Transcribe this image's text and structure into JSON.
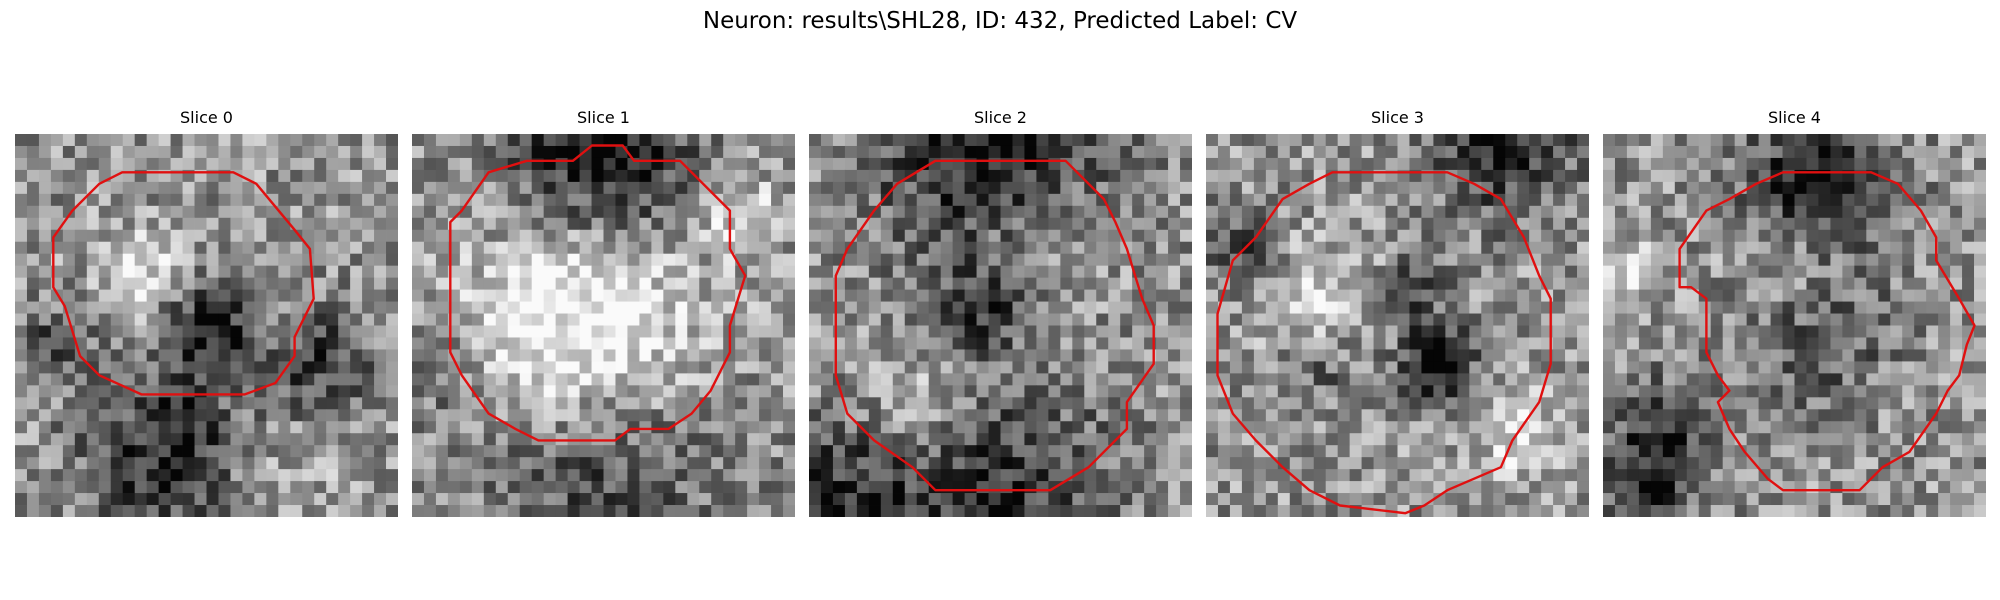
{
  "figure": {
    "title": "Neuron: results\\SHL28, ID: 432, Predicted Label: CV",
    "contour_color": "#e01010"
  },
  "panels": [
    {
      "title": "Slice 0",
      "dark_spots": [
        [
          0.5,
          0.5,
          0.12,
          0.45
        ],
        [
          0.43,
          0.85,
          0.22,
          0.55
        ],
        [
          0.1,
          0.55,
          0.1,
          0.3
        ],
        [
          0.8,
          0.6,
          0.14,
          0.35
        ]
      ],
      "bright_spots": [
        [
          0.33,
          0.37,
          0.12,
          0.3
        ],
        [
          0.6,
          0.9,
          0.2,
          0.25
        ]
      ],
      "contour": [
        [
          0.28,
          0.1
        ],
        [
          0.57,
          0.1
        ],
        [
          0.63,
          0.13
        ],
        [
          0.73,
          0.25
        ],
        [
          0.77,
          0.3
        ],
        [
          0.78,
          0.43
        ],
        [
          0.73,
          0.53
        ],
        [
          0.73,
          0.58
        ],
        [
          0.68,
          0.65
        ],
        [
          0.6,
          0.68
        ],
        [
          0.33,
          0.68
        ],
        [
          0.22,
          0.63
        ],
        [
          0.17,
          0.58
        ],
        [
          0.13,
          0.45
        ],
        [
          0.1,
          0.4
        ],
        [
          0.1,
          0.27
        ],
        [
          0.15,
          0.2
        ],
        [
          0.22,
          0.13
        ]
      ]
    },
    {
      "title": "Slice 1",
      "dark_spots": [
        [
          0.5,
          0.05,
          0.25,
          0.55
        ],
        [
          0.5,
          0.88,
          0.3,
          0.35
        ],
        [
          0.05,
          0.6,
          0.12,
          0.25
        ]
      ],
      "bright_spots": [
        [
          0.45,
          0.5,
          0.3,
          0.5
        ],
        [
          0.85,
          0.2,
          0.1,
          0.3
        ]
      ],
      "contour": [
        [
          0.3,
          0.07
        ],
        [
          0.42,
          0.07
        ],
        [
          0.47,
          0.03
        ],
        [
          0.55,
          0.03
        ],
        [
          0.58,
          0.07
        ],
        [
          0.7,
          0.07
        ],
        [
          0.8,
          0.17
        ],
        [
          0.83,
          0.2
        ],
        [
          0.83,
          0.3
        ],
        [
          0.87,
          0.37
        ],
        [
          0.83,
          0.5
        ],
        [
          0.83,
          0.57
        ],
        [
          0.78,
          0.67
        ],
        [
          0.73,
          0.73
        ],
        [
          0.67,
          0.77
        ],
        [
          0.57,
          0.77
        ],
        [
          0.53,
          0.8
        ],
        [
          0.33,
          0.8
        ],
        [
          0.27,
          0.77
        ],
        [
          0.2,
          0.73
        ],
        [
          0.13,
          0.63
        ],
        [
          0.1,
          0.57
        ],
        [
          0.1,
          0.23
        ],
        [
          0.13,
          0.2
        ],
        [
          0.2,
          0.1
        ]
      ]
    },
    {
      "title": "Slice 2",
      "dark_spots": [
        [
          0.5,
          0.03,
          0.3,
          0.6
        ],
        [
          0.45,
          0.45,
          0.12,
          0.35
        ],
        [
          0.08,
          0.95,
          0.2,
          0.35
        ],
        [
          0.5,
          0.95,
          0.3,
          0.4
        ]
      ],
      "bright_spots": [
        [
          0.6,
          0.25,
          0.2,
          0.25
        ],
        [
          0.3,
          0.7,
          0.15,
          0.2
        ]
      ],
      "contour": [
        [
          0.33,
          0.07
        ],
        [
          0.67,
          0.07
        ],
        [
          0.73,
          0.13
        ],
        [
          0.77,
          0.17
        ],
        [
          0.8,
          0.23
        ],
        [
          0.83,
          0.3
        ],
        [
          0.87,
          0.43
        ],
        [
          0.9,
          0.5
        ],
        [
          0.9,
          0.6
        ],
        [
          0.83,
          0.7
        ],
        [
          0.83,
          0.77
        ],
        [
          0.73,
          0.87
        ],
        [
          0.63,
          0.93
        ],
        [
          0.33,
          0.93
        ],
        [
          0.27,
          0.87
        ],
        [
          0.17,
          0.8
        ],
        [
          0.1,
          0.73
        ],
        [
          0.07,
          0.63
        ],
        [
          0.07,
          0.37
        ],
        [
          0.1,
          0.3
        ],
        [
          0.17,
          0.2
        ],
        [
          0.23,
          0.13
        ]
      ]
    },
    {
      "title": "Slice 3",
      "dark_spots": [
        [
          0.6,
          0.6,
          0.1,
          0.6
        ],
        [
          0.55,
          0.4,
          0.08,
          0.3
        ],
        [
          0.3,
          0.6,
          0.1,
          0.25
        ],
        [
          0.78,
          0.03,
          0.18,
          0.45
        ],
        [
          0.08,
          0.3,
          0.1,
          0.3
        ]
      ],
      "bright_spots": [
        [
          0.3,
          0.45,
          0.15,
          0.25
        ],
        [
          0.82,
          0.78,
          0.12,
          0.25
        ]
      ],
      "contour": [
        [
          0.33,
          0.1
        ],
        [
          0.63,
          0.1
        ],
        [
          0.7,
          0.13
        ],
        [
          0.77,
          0.17
        ],
        [
          0.83,
          0.27
        ],
        [
          0.87,
          0.37
        ],
        [
          0.9,
          0.43
        ],
        [
          0.9,
          0.6
        ],
        [
          0.87,
          0.7
        ],
        [
          0.8,
          0.8
        ],
        [
          0.77,
          0.87
        ],
        [
          0.63,
          0.93
        ],
        [
          0.57,
          0.97
        ],
        [
          0.52,
          0.99
        ],
        [
          0.35,
          0.97
        ],
        [
          0.27,
          0.93
        ],
        [
          0.2,
          0.87
        ],
        [
          0.13,
          0.8
        ],
        [
          0.07,
          0.73
        ],
        [
          0.03,
          0.63
        ],
        [
          0.03,
          0.47
        ],
        [
          0.07,
          0.33
        ],
        [
          0.13,
          0.27
        ],
        [
          0.2,
          0.17
        ],
        [
          0.27,
          0.13
        ]
      ]
    },
    {
      "title": "Slice 4",
      "dark_spots": [
        [
          0.57,
          0.12,
          0.18,
          0.55
        ],
        [
          0.55,
          0.5,
          0.2,
          0.3
        ],
        [
          0.15,
          0.8,
          0.15,
          0.35
        ],
        [
          0.1,
          0.95,
          0.12,
          0.3
        ]
      ],
      "bright_spots": [
        [
          0.05,
          0.35,
          0.08,
          0.3
        ],
        [
          0.5,
          0.35,
          0.15,
          0.25
        ]
      ],
      "contour": [
        [
          0.47,
          0.1
        ],
        [
          0.7,
          0.1
        ],
        [
          0.77,
          0.13
        ],
        [
          0.83,
          0.2
        ],
        [
          0.87,
          0.27
        ],
        [
          0.87,
          0.33
        ],
        [
          0.93,
          0.43
        ],
        [
          0.97,
          0.5
        ],
        [
          0.95,
          0.55
        ],
        [
          0.93,
          0.63
        ],
        [
          0.9,
          0.67
        ],
        [
          0.87,
          0.73
        ],
        [
          0.8,
          0.83
        ],
        [
          0.73,
          0.87
        ],
        [
          0.67,
          0.93
        ],
        [
          0.47,
          0.93
        ],
        [
          0.43,
          0.9
        ],
        [
          0.37,
          0.83
        ],
        [
          0.33,
          0.77
        ],
        [
          0.3,
          0.7
        ],
        [
          0.33,
          0.67
        ],
        [
          0.3,
          0.63
        ],
        [
          0.27,
          0.57
        ],
        [
          0.27,
          0.43
        ],
        [
          0.23,
          0.4
        ],
        [
          0.2,
          0.4
        ],
        [
          0.2,
          0.3
        ],
        [
          0.27,
          0.2
        ],
        [
          0.33,
          0.17
        ],
        [
          0.4,
          0.13
        ]
      ]
    }
  ]
}
